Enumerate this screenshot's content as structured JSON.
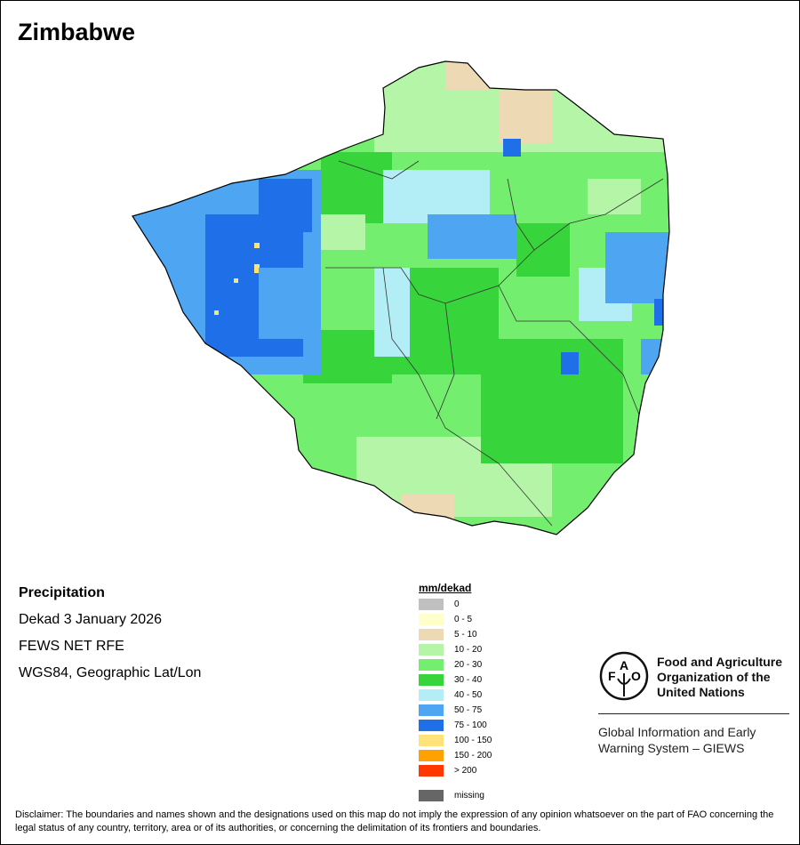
{
  "title": "Zimbabwe",
  "info": {
    "variable": "Precipitation",
    "period": "Dekad 3 January 2026",
    "source": "FEWS NET RFE",
    "projection": "WGS84, Geographic Lat/Lon"
  },
  "legend": {
    "title": "mm/dekad",
    "items": [
      {
        "label": "0",
        "color": "#c0c0c0"
      },
      {
        "label": "0 - 5",
        "color": "#ffffcc"
      },
      {
        "label": "5 - 10",
        "color": "#eed9b5"
      },
      {
        "label": "10 - 20",
        "color": "#b5f5a8"
      },
      {
        "label": "20 - 30",
        "color": "#74ee6e"
      },
      {
        "label": "30 - 40",
        "color": "#38d43c"
      },
      {
        "label": "40 - 50",
        "color": "#b3eef7"
      },
      {
        "label": "50 - 75",
        "color": "#4ea6f2"
      },
      {
        "label": "75 - 100",
        "color": "#1f6fe8"
      },
      {
        "label": "100 - 150",
        "color": "#fee27a"
      },
      {
        "label": "150 - 200",
        "color": "#ffa200"
      },
      {
        "label": "> 200",
        "color": "#ff3700"
      }
    ],
    "missing": {
      "label": "missing",
      "color": "#666666"
    }
  },
  "logo": {
    "org_line1": "Food and Agriculture",
    "org_line2": "Organization of the",
    "org_line3": "United Nations",
    "emblem_text": "FAO FIAT PANIS",
    "giews_line1": "Global Information and Early",
    "giews_line2": "Warning System – GIEWS"
  },
  "disclaimer": "Disclaimer: The boundaries and names shown and the designations used on this map do not imply the expression of any opinion whatsoever on the part of FAO concerning the legal status of any country, territory, area or of its authorities, or concerning the delimitation of its frontiers and boundaries."
}
